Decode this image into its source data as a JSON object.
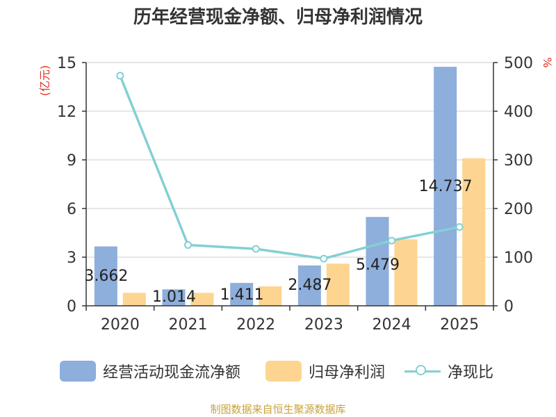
{
  "chart_data": {
    "type": "bar",
    "title": "历年经营现金净额、归母净利润情况",
    "categories": [
      "2020",
      "2021",
      "2022",
      "2023",
      "2024",
      "2025"
    ],
    "y_left": {
      "label": "(亿元)",
      "ticks": [
        "0",
        "3",
        "6",
        "9",
        "12",
        "15"
      ],
      "range": [
        0,
        15
      ]
    },
    "y_right": {
      "label": "%",
      "ticks": [
        "0",
        "100",
        "200",
        "300",
        "400",
        "500"
      ],
      "range": [
        0,
        500
      ]
    },
    "series": [
      {
        "name": "经营活动现金流净额",
        "type": "bar",
        "axis": "left",
        "color": "#8eaedb",
        "values": [
          3.662,
          1.014,
          1.411,
          2.487,
          5.479,
          14.737
        ],
        "data_labels": [
          "3.662",
          "1.014",
          "1.411",
          "2.487",
          "5.479",
          "14.737"
        ]
      },
      {
        "name": "归母净利润",
        "type": "bar",
        "axis": "left",
        "color": "#fdd591",
        "values": [
          0.8,
          0.8,
          1.2,
          2.6,
          4.1,
          9.1
        ]
      },
      {
        "name": "净现比",
        "type": "line",
        "axis": "right",
        "color": "#82d0d4",
        "values": [
          473,
          125,
          117,
          97,
          134,
          162
        ]
      }
    ],
    "grid": true,
    "legend_position": "bottom"
  },
  "footer": {
    "source": "制图数据来自恒生聚源数据库"
  }
}
